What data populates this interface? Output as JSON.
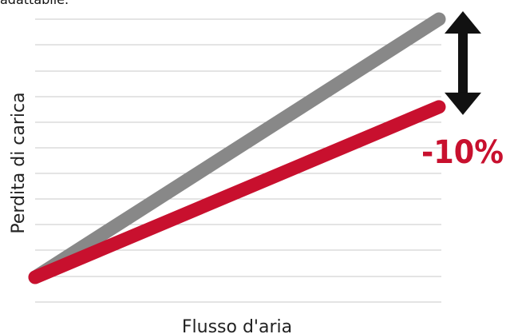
{
  "header": {
    "clipped_text": "adattabile."
  },
  "chart_data": {
    "type": "line",
    "title": "",
    "xlabel": "Flusso d'aria",
    "ylabel": "Perdita di carica",
    "xlim": [
      0,
      1
    ],
    "ylim": [
      0,
      1
    ],
    "grid": "horizontal",
    "series": [
      {
        "color": "#888888",
        "x": [
          0,
          1
        ],
        "y": [
          0,
          1
        ]
      },
      {
        "color": "#c8102e",
        "x": [
          0,
          1
        ],
        "y": [
          0,
          0.66
        ]
      }
    ],
    "annotations": [
      {
        "text": "-10%",
        "color": "#c8102e"
      }
    ]
  }
}
